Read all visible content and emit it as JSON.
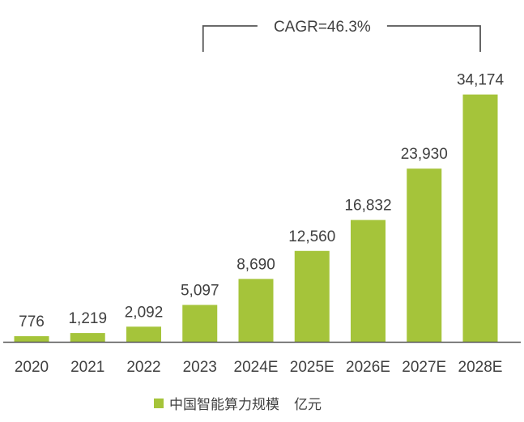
{
  "chart_data": {
    "type": "bar",
    "categories": [
      "2020",
      "2021",
      "2022",
      "2023",
      "2024E",
      "2025E",
      "2026E",
      "2027E",
      "2028E"
    ],
    "series": [
      {
        "name": "中国智能算力规模",
        "values": [
          776,
          1219,
          2092,
          5097,
          8690,
          12560,
          16832,
          23930,
          34174
        ]
      }
    ],
    "value_labels": [
      "776",
      "1,219",
      "2,092",
      "5,097",
      "8,690",
      "12,560",
      "16,832",
      "23,930",
      "34,174"
    ],
    "unit": "亿元",
    "annotation": "CAGR=46.3%",
    "annotation_span": [
      "2023",
      "2028E"
    ],
    "title": "",
    "xlabel": "",
    "ylabel": "",
    "ylim": [
      0,
      38500
    ],
    "grid": false,
    "legend_position": "bottom-center",
    "bar_color": "#a5c43a",
    "axis_color": "#555555"
  }
}
